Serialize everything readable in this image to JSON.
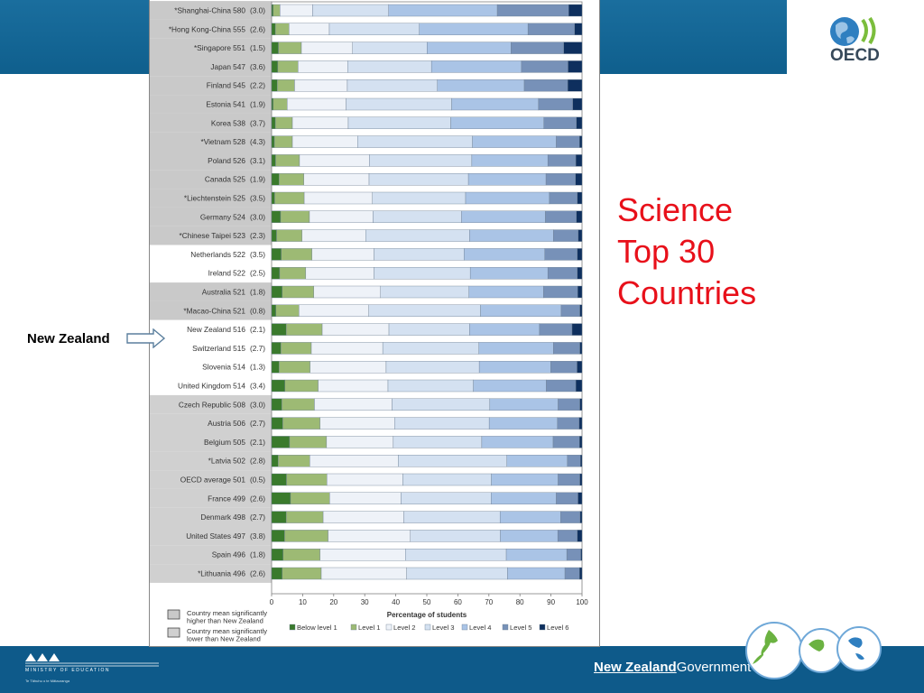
{
  "slide": {
    "title_lines": [
      "Science",
      "Top 30",
      "Countries"
    ],
    "callout_label": "New Zealand",
    "oecd_logo_text": "OECD",
    "ministry_name": "MINISTRY OF EDUCATION",
    "ministry_subtitle": "Te Tāhuhu o te Mātauranga",
    "nz_government_left": "New Zealand",
    "nz_government_right": "Government"
  },
  "chart_data": {
    "type": "bar",
    "orientation": "horizontal",
    "stacked": true,
    "xlabel": "Percentage of students",
    "xlim": [
      0,
      100
    ],
    "x_ticks": [
      0,
      10,
      20,
      30,
      40,
      50,
      60,
      70,
      80,
      90,
      100
    ],
    "legend": [
      "Below level 1",
      "Level 1",
      "Level 2",
      "Level 3",
      "Level 4",
      "Level 5",
      "Level 6"
    ],
    "legend_position": "bottom",
    "series_colors": [
      "#3a7a2c",
      "#9dba74",
      "#eef2f8",
      "#d4e1f1",
      "#aac4e6",
      "#7791b8",
      "#0e2f5e"
    ],
    "shading_legend": [
      {
        "label_lines": [
          "Country mean significantly",
          "higher than New Zealand"
        ],
        "color": "#c9c9c9"
      },
      {
        "label_lines": [
          "Country mean significantly",
          "lower than New Zealand"
        ],
        "color": "#d0d0d0"
      }
    ],
    "rows": [
      {
        "name": "*Shanghai-China",
        "score": "580",
        "se": "(3.0)",
        "group": "higher",
        "values": [
          0.5,
          2.2,
          10.5,
          24.5,
          35.0,
          23.0,
          4.3
        ]
      },
      {
        "name": "*Hong Kong-China",
        "score": "555",
        "se": "(2.6)",
        "group": "higher",
        "values": [
          1.2,
          4.4,
          13.0,
          29.0,
          35.0,
          15.0,
          2.4
        ]
      },
      {
        "name": "*Singapore",
        "score": "551",
        "se": "(1.5)",
        "group": "higher",
        "values": [
          2.2,
          7.4,
          16.5,
          24.0,
          27.0,
          17.0,
          5.9
        ]
      },
      {
        "name": "Japan",
        "score": "547",
        "se": "(3.6)",
        "group": "higher",
        "values": [
          2.0,
          6.5,
          16.0,
          27.0,
          29.0,
          15.0,
          4.5
        ]
      },
      {
        "name": "Finland",
        "score": "545",
        "se": "(2.2)",
        "group": "higher",
        "values": [
          1.8,
          5.6,
          17.0,
          29.0,
          28.0,
          14.0,
          4.6
        ]
      },
      {
        "name": "Estonia",
        "score": "541",
        "se": "(1.9)",
        "group": "higher",
        "values": [
          0.5,
          4.5,
          19.0,
          34.0,
          28.0,
          11.0,
          3.0
        ]
      },
      {
        "name": "Korea",
        "score": "538",
        "se": "(3.7)",
        "group": "higher",
        "values": [
          1.2,
          5.5,
          18.0,
          33.0,
          30.0,
          10.5,
          1.8
        ]
      },
      {
        "name": "*Vietnam",
        "score": "528",
        "se": "(4.3)",
        "group": "higher",
        "values": [
          0.9,
          5.8,
          21.0,
          37.0,
          27.0,
          7.5,
          0.8
        ]
      },
      {
        "name": "Poland",
        "score": "526",
        "se": "(3.1)",
        "group": "higher",
        "values": [
          1.3,
          7.7,
          22.5,
          33.0,
          24.5,
          9.0,
          2.0
        ]
      },
      {
        "name": "Canada",
        "score": "525",
        "se": "(1.9)",
        "group": "higher",
        "values": [
          2.4,
          8.0,
          21.0,
          32.0,
          25.0,
          9.5,
          2.1
        ]
      },
      {
        "name": "*Liechtenstein",
        "score": "525",
        "se": "(3.5)",
        "group": "higher",
        "values": [
          1.0,
          9.5,
          22.0,
          30.0,
          27.0,
          9.0,
          1.5
        ]
      },
      {
        "name": "Germany",
        "score": "524",
        "se": "(3.0)",
        "group": "higher",
        "values": [
          2.9,
          9.3,
          20.5,
          28.5,
          27.0,
          10.0,
          1.8
        ]
      },
      {
        "name": "*Chinese Taipei",
        "score": "523",
        "se": "(2.3)",
        "group": "higher",
        "values": [
          1.6,
          8.2,
          20.5,
          33.5,
          27.0,
          8.0,
          1.2
        ]
      },
      {
        "name": "Netherlands",
        "score": "522",
        "se": "(3.5)",
        "group": "similar",
        "values": [
          3.1,
          9.9,
          20.0,
          29.0,
          26.0,
          10.5,
          1.5
        ]
      },
      {
        "name": "Ireland",
        "score": "522",
        "se": "(2.5)",
        "group": "similar",
        "values": [
          2.6,
          8.4,
          22.0,
          31.0,
          25.0,
          9.5,
          1.5
        ]
      },
      {
        "name": "Australia",
        "score": "521",
        "se": "(1.8)",
        "group": "higher",
        "values": [
          3.4,
          10.2,
          21.5,
          28.5,
          24.0,
          11.0,
          1.4
        ]
      },
      {
        "name": "*Macao-China",
        "score": "521",
        "se": "(0.8)",
        "group": "higher",
        "values": [
          1.4,
          7.4,
          22.5,
          36.0,
          26.0,
          6.0,
          0.7
        ]
      },
      {
        "name": "New Zealand",
        "score": "516",
        "se": "(2.1)",
        "group": "reference",
        "values": [
          4.7,
          11.6,
          21.5,
          26.0,
          22.5,
          10.5,
          3.2
        ]
      },
      {
        "name": "Switzerland",
        "score": "515",
        "se": "(2.7)",
        "group": "similar",
        "values": [
          3.0,
          9.8,
          23.0,
          31.0,
          24.0,
          8.5,
          0.7
        ]
      },
      {
        "name": "Slovenia",
        "score": "514",
        "se": "(1.3)",
        "group": "similar",
        "values": [
          2.4,
          10.0,
          24.5,
          30.0,
          23.0,
          8.5,
          1.6
        ]
      },
      {
        "name": "United Kingdom",
        "score": "514",
        "se": "(3.4)",
        "group": "similar",
        "values": [
          4.3,
          10.7,
          22.5,
          27.5,
          23.5,
          9.5,
          2.0
        ]
      },
      {
        "name": "Czech Republic",
        "score": "508",
        "se": "(3.0)",
        "group": "lower",
        "values": [
          3.3,
          10.5,
          25.0,
          31.5,
          22.0,
          7.0,
          0.7
        ]
      },
      {
        "name": "Austria",
        "score": "506",
        "se": "(2.7)",
        "group": "lower",
        "values": [
          3.6,
          12.0,
          24.0,
          30.5,
          22.0,
          7.0,
          0.9
        ]
      },
      {
        "name": "Belgium",
        "score": "505",
        "se": "(2.1)",
        "group": "lower",
        "values": [
          5.8,
          11.9,
          21.5,
          28.5,
          23.0,
          8.5,
          0.8
        ]
      },
      {
        "name": "*Latvia",
        "score": "502",
        "se": "(2.8)",
        "group": "lower",
        "values": [
          2.1,
          10.2,
          28.5,
          35.0,
          19.5,
          4.2,
          0.5
        ]
      },
      {
        "name": "OECD average",
        "score": "501",
        "se": "(0.5)",
        "group": "lower",
        "values": [
          4.8,
          13.0,
          24.5,
          28.5,
          21.5,
          7.0,
          0.7
        ]
      },
      {
        "name": "France",
        "score": "499",
        "se": "(2.6)",
        "group": "lower",
        "values": [
          6.1,
          12.6,
          23.0,
          29.0,
          21.0,
          7.0,
          1.3
        ]
      },
      {
        "name": "Denmark",
        "score": "498",
        "se": "(2.7)",
        "group": "lower",
        "values": [
          4.7,
          11.9,
          26.0,
          31.0,
          19.5,
          6.3,
          0.6
        ]
      },
      {
        "name": "United States",
        "score": "497",
        "se": "(3.8)",
        "group": "lower",
        "values": [
          4.2,
          14.0,
          26.5,
          29.0,
          18.5,
          6.3,
          1.5
        ]
      },
      {
        "name": "Spain",
        "score": "496",
        "se": "(1.8)",
        "group": "lower",
        "values": [
          3.7,
          11.9,
          27.5,
          32.5,
          19.5,
          4.5,
          0.4
        ]
      },
      {
        "name": "*Lithuania",
        "score": "496",
        "se": "(2.6)",
        "group": "lower",
        "values": [
          3.4,
          12.6,
          27.5,
          32.5,
          18.5,
          4.7,
          0.8
        ]
      }
    ]
  }
}
